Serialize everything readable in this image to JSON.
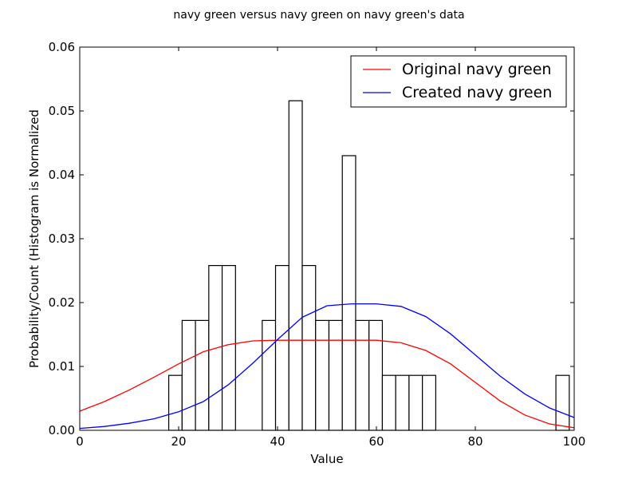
{
  "chart_data": {
    "type": "bar",
    "title": "navy green versus navy green on navy green's data",
    "xlabel": "Value",
    "ylabel": "Probability/Count (Histogram is Normalized",
    "xlim": [
      0,
      100
    ],
    "ylim": [
      0,
      0.06
    ],
    "xticks": [
      0,
      20,
      40,
      60,
      80,
      100
    ],
    "xtick_labels": [
      "0",
      "20",
      "40",
      "60",
      "80",
      "100"
    ],
    "yticks": [
      0,
      0.01,
      0.02,
      0.03,
      0.04,
      0.05,
      0.06
    ],
    "ytick_labels": [
      "0.00",
      "0.01",
      "0.02",
      "0.03",
      "0.04",
      "0.05",
      "0.06"
    ],
    "grid": false,
    "legend_position": "top-right",
    "histogram": {
      "bin_edges": [
        18.0,
        20.7,
        23.4,
        26.1,
        28.8,
        31.5,
        34.2,
        36.9,
        39.6,
        42.3,
        45.0,
        47.7,
        50.4,
        53.1,
        55.8,
        58.5,
        61.2,
        63.9,
        66.6,
        69.3,
        72.0,
        74.7,
        77.4,
        80.1,
        82.8,
        85.5,
        88.2,
        90.9,
        93.6,
        96.3,
        99.0
      ],
      "density": [
        0.0086,
        0.0172,
        0.0172,
        0.0258,
        0.0258,
        0,
        0,
        0.0172,
        0.0258,
        0.0516,
        0.0258,
        0.0172,
        0.0172,
        0.043,
        0.0172,
        0.0172,
        0.0086,
        0.0086,
        0.0086,
        0.0086,
        0,
        0,
        0,
        0,
        0,
        0,
        0,
        0,
        0,
        0.0086
      ],
      "edge_color": "#000000",
      "fill_color": "#ffffff"
    },
    "series": [
      {
        "name": "Original navy green",
        "color": "#ff0000",
        "x": [
          0,
          5,
          10,
          15,
          20,
          25,
          30,
          35,
          40,
          45,
          50,
          55,
          60,
          65,
          70,
          75,
          80,
          85,
          90,
          95,
          100
        ],
        "y": [
          0.003,
          0.0045,
          0.0063,
          0.0083,
          0.0104,
          0.0123,
          0.0134,
          0.014,
          0.0141,
          0.0141,
          0.0141,
          0.0141,
          0.0141,
          0.0137,
          0.0125,
          0.0104,
          0.0075,
          0.0046,
          0.0024,
          0.001,
          0.0004
        ]
      },
      {
        "name": "Created navy green",
        "color": "#0000ff",
        "x": [
          0,
          5,
          10,
          15,
          20,
          25,
          30,
          35,
          40,
          45,
          50,
          55,
          60,
          65,
          70,
          75,
          80,
          85,
          90,
          95,
          100
        ],
        "y": [
          0.0003,
          0.0006,
          0.0011,
          0.0018,
          0.0029,
          0.0045,
          0.0071,
          0.0105,
          0.0142,
          0.0177,
          0.0195,
          0.0198,
          0.0198,
          0.0194,
          0.0178,
          0.0151,
          0.0118,
          0.0085,
          0.0057,
          0.0035,
          0.002
        ]
      }
    ]
  }
}
